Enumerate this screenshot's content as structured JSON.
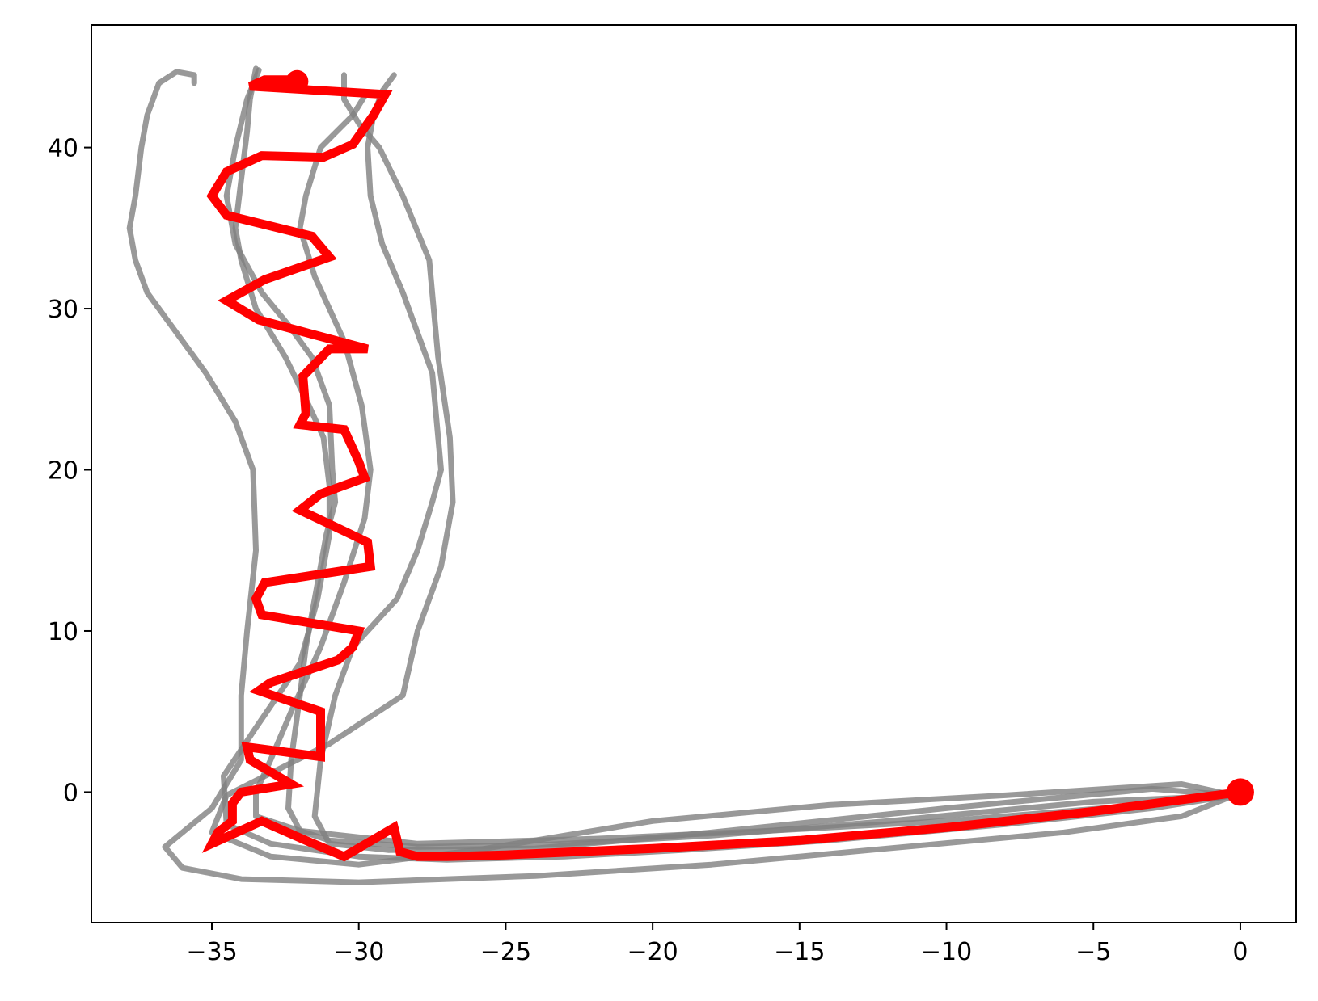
{
  "chart_data": {
    "type": "line",
    "title": "",
    "xlabel": "",
    "ylabel": "",
    "xlim": [
      -39.1,
      1.9
    ],
    "ylim": [
      -8.1,
      47.6
    ],
    "xticks": [
      -35,
      -30,
      -25,
      -20,
      -15,
      -10,
      -5,
      0
    ],
    "yticks": [
      0,
      10,
      20,
      30,
      40
    ],
    "xtick_labels": [
      "−35",
      "−30",
      "−25",
      "−20",
      "−15",
      "−10",
      "−5",
      "0"
    ],
    "ytick_labels": [
      "0",
      "10",
      "20",
      "30",
      "40"
    ],
    "grid": false,
    "legend": "none",
    "colors": {
      "background_series": "#808080",
      "highlight_series": "#ff0000",
      "axes": "#000000"
    },
    "background_series": [
      {
        "points": [
          [
            -0.2,
            -0.2
          ],
          [
            -2,
            0.5
          ],
          [
            -8,
            -0.2
          ],
          [
            -14,
            -0.8
          ],
          [
            -20,
            -1.8
          ],
          [
            -26,
            -3.6
          ],
          [
            -30,
            -4.5
          ],
          [
            -33,
            -4
          ],
          [
            -35,
            -2.5
          ],
          [
            -34.5,
            -0.2
          ],
          [
            -31,
            3
          ],
          [
            -28.5,
            6
          ],
          [
            -28,
            10
          ],
          [
            -27.2,
            14
          ],
          [
            -26.8,
            18
          ],
          [
            -26.9,
            22
          ],
          [
            -27.3,
            27
          ],
          [
            -27.6,
            33
          ],
          [
            -28.5,
            37
          ],
          [
            -29.3,
            40
          ],
          [
            -30,
            41.5
          ],
          [
            -30.5,
            43
          ],
          [
            -30.5,
            44.5
          ]
        ]
      },
      {
        "points": [
          [
            -0.2,
            -0.2
          ],
          [
            -3,
            0.2
          ],
          [
            -10,
            -1
          ],
          [
            -18,
            -2.5
          ],
          [
            -24,
            -3.5
          ],
          [
            -29,
            -3.6
          ],
          [
            -31,
            -3.2
          ],
          [
            -31.5,
            -1.5
          ],
          [
            -31.3,
            2
          ],
          [
            -30.8,
            6
          ],
          [
            -30.2,
            9
          ],
          [
            -28.7,
            12
          ],
          [
            -28,
            15
          ],
          [
            -27.5,
            18
          ],
          [
            -27.2,
            20
          ],
          [
            -27.5,
            26
          ],
          [
            -28.5,
            31
          ],
          [
            -29.2,
            34
          ],
          [
            -29.6,
            37
          ],
          [
            -29.7,
            40
          ],
          [
            -29.5,
            42
          ],
          [
            -29.2,
            43.5
          ],
          [
            -28.8,
            44.5
          ]
        ]
      },
      {
        "points": [
          [
            -0.2,
            -0.2
          ],
          [
            -5,
            -0.6
          ],
          [
            -12,
            -1.8
          ],
          [
            -18,
            -2.7
          ],
          [
            -24,
            -3.3
          ],
          [
            -28,
            -3.4
          ],
          [
            -31,
            -3
          ],
          [
            -33.5,
            -1.5
          ],
          [
            -33.5,
            0
          ],
          [
            -33,
            2
          ],
          [
            -32.3,
            5
          ],
          [
            -31.3,
            9
          ],
          [
            -30.5,
            13
          ],
          [
            -29.8,
            17
          ],
          [
            -29.6,
            20
          ],
          [
            -29.9,
            24
          ],
          [
            -30.5,
            28
          ],
          [
            -31.5,
            32
          ],
          [
            -32,
            35
          ],
          [
            -31.8,
            37
          ],
          [
            -31.3,
            40
          ],
          [
            -30.2,
            42
          ],
          [
            -29.8,
            43.2
          ]
        ]
      },
      {
        "points": [
          [
            -0.2,
            -0.2
          ],
          [
            -3,
            -1
          ],
          [
            -8,
            -2
          ],
          [
            -14,
            -3
          ],
          [
            -19,
            -3.6
          ],
          [
            -23,
            -4
          ],
          [
            -27,
            -4.2
          ],
          [
            -30,
            -4
          ],
          [
            -33,
            -3.2
          ],
          [
            -34.5,
            -2
          ],
          [
            -34.6,
            1
          ],
          [
            -33.5,
            4
          ],
          [
            -32,
            8
          ],
          [
            -31.4,
            12
          ],
          [
            -31,
            16
          ],
          [
            -31,
            19
          ],
          [
            -31.2,
            22
          ],
          [
            -31.7,
            24
          ],
          [
            -32.5,
            27
          ],
          [
            -33.5,
            30
          ],
          [
            -34,
            33
          ],
          [
            -34.2,
            35
          ],
          [
            -34,
            38
          ],
          [
            -33.8,
            41
          ],
          [
            -33.7,
            43
          ],
          [
            -33.5,
            44.9
          ]
        ]
      },
      {
        "points": [
          [
            -0.2,
            -0.2
          ],
          [
            -4,
            -0.9
          ],
          [
            -10,
            -1.8
          ],
          [
            -16,
            -2.4
          ],
          [
            -22,
            -2.9
          ],
          [
            -28,
            -3.2
          ],
          [
            -32,
            -2.4
          ],
          [
            -32.4,
            -1
          ],
          [
            -32.3,
            2
          ],
          [
            -32,
            6
          ],
          [
            -31.8,
            9
          ],
          [
            -31.5,
            12
          ],
          [
            -31.1,
            16
          ],
          [
            -30.8,
            18
          ],
          [
            -30.9,
            20
          ],
          [
            -31,
            24
          ],
          [
            -31.6,
            27
          ],
          [
            -32.4,
            29
          ],
          [
            -33.3,
            31
          ],
          [
            -34.2,
            34
          ],
          [
            -34.5,
            37
          ],
          [
            -34.2,
            40
          ],
          [
            -33.8,
            43
          ],
          [
            -33.4,
            44.8
          ]
        ]
      },
      {
        "points": [
          [
            -0.2,
            -0.2
          ],
          [
            -2,
            -1.5
          ],
          [
            -6,
            -2.5
          ],
          [
            -12,
            -3.5
          ],
          [
            -18,
            -4.5
          ],
          [
            -24,
            -5.2
          ],
          [
            -30,
            -5.6
          ],
          [
            -34,
            -5.4
          ],
          [
            -36,
            -4.7
          ],
          [
            -36.6,
            -3.4
          ],
          [
            -35,
            -1
          ],
          [
            -34,
            2
          ],
          [
            -34,
            6
          ],
          [
            -33.8,
            10
          ],
          [
            -33.5,
            15
          ],
          [
            -33.6,
            20
          ],
          [
            -34.2,
            23
          ],
          [
            -35.2,
            26
          ],
          [
            -36.4,
            29
          ],
          [
            -37.2,
            31
          ],
          [
            -37.6,
            33
          ],
          [
            -37.8,
            35
          ],
          [
            -37.6,
            37
          ],
          [
            -37.4,
            40
          ],
          [
            -37.2,
            42
          ],
          [
            -36.8,
            44
          ],
          [
            -36.2,
            44.7
          ],
          [
            -35.6,
            44.5
          ],
          [
            -35.6,
            44
          ]
        ]
      }
    ],
    "highlight_series": {
      "points": [
        [
          0,
          0
        ],
        [
          -5,
          -1.2
        ],
        [
          -10,
          -2.2
        ],
        [
          -15,
          -3
        ],
        [
          -20,
          -3.5
        ],
        [
          -25,
          -3.9
        ],
        [
          -27,
          -4
        ],
        [
          -28,
          -4
        ],
        [
          -28.6,
          -3.7
        ],
        [
          -28.8,
          -2.2
        ],
        [
          -30.5,
          -4
        ],
        [
          -31.8,
          -3
        ],
        [
          -33.3,
          -1.8
        ],
        [
          -35,
          -3.2
        ],
        [
          -34.8,
          -2.5
        ],
        [
          -34.3,
          -1.8
        ],
        [
          -34.3,
          -0.7
        ],
        [
          -34,
          0
        ],
        [
          -32.3,
          0.5
        ],
        [
          -33.7,
          2
        ],
        [
          -33.8,
          2.8
        ],
        [
          -31.3,
          2.2
        ],
        [
          -31.3,
          5
        ],
        [
          -33.4,
          6.3
        ],
        [
          -33,
          6.8
        ],
        [
          -30.7,
          8.2
        ],
        [
          -30.2,
          9
        ],
        [
          -30,
          10
        ],
        [
          -33.3,
          11
        ],
        [
          -33.5,
          12
        ],
        [
          -33.2,
          13
        ],
        [
          -29.6,
          14
        ],
        [
          -29.7,
          15.5
        ],
        [
          -30.5,
          16.2
        ],
        [
          -32,
          17.5
        ],
        [
          -31.3,
          18.5
        ],
        [
          -29.8,
          19.5
        ],
        [
          -30,
          20.5
        ],
        [
          -30.5,
          22.5
        ],
        [
          -32,
          22.8
        ],
        [
          -31.8,
          23.5
        ],
        [
          -31.9,
          25.8
        ],
        [
          -31,
          27.5
        ],
        [
          -29.7,
          27.5
        ],
        [
          -33.4,
          29.3
        ],
        [
          -34.5,
          30.5
        ],
        [
          -33.2,
          31.8
        ],
        [
          -31,
          33.2
        ],
        [
          -31.6,
          34.5
        ],
        [
          -34.5,
          35.8
        ],
        [
          -35,
          37
        ],
        [
          -34.5,
          38.5
        ],
        [
          -33.3,
          39.5
        ],
        [
          -31.2,
          39.4
        ],
        [
          -30.2,
          40.2
        ],
        [
          -29.5,
          42
        ],
        [
          -29.1,
          43.3
        ],
        [
          -33.7,
          43.8
        ],
        [
          -33.2,
          44.2
        ],
        [
          -32.2,
          44.2
        ]
      ],
      "start_marker": [
        0,
        0
      ],
      "end_marker": [
        -32.1,
        44.1
      ]
    }
  }
}
